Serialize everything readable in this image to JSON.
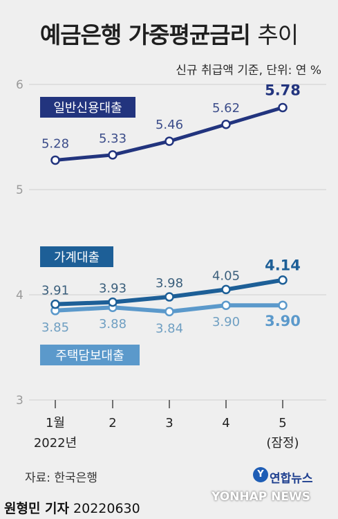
{
  "header": {
    "title_main": "예금은행 가중평균금리",
    "title_suffix": "추이",
    "subtitle": "신규 취급액 기준, 단위: 연 %"
  },
  "footer": {
    "source": "자료: 한국은행",
    "reporter": "원형민 기자",
    "date": "20220630",
    "logo": "연합뉴스",
    "watermark": "YONHAP NEWS"
  },
  "colors": {
    "series_dark": "#22347e",
    "series_mid": "#1d5f97",
    "series_light": "#5b99cb",
    "grid": "#cfcfcf",
    "axis": "#444444"
  },
  "chart_data": {
    "type": "line",
    "title": "예금은행 가중평균금리 추이",
    "xlabel": "",
    "ylabel": "",
    "unit": "연 %",
    "x_labels": [
      {
        "top": "1월",
        "bottom": "2022년"
      },
      {
        "top": "2",
        "bottom": ""
      },
      {
        "top": "3",
        "bottom": ""
      },
      {
        "top": "4",
        "bottom": ""
      },
      {
        "top": "5",
        "bottom": "(잠정)"
      }
    ],
    "y_ticks": [
      "3",
      "4",
      "5",
      "6"
    ],
    "ylim": [
      3,
      6
    ],
    "grid": true,
    "series": [
      {
        "name": "일반신용대출",
        "color": "#22347e",
        "values": [
          5.28,
          5.33,
          5.46,
          5.62,
          5.78
        ],
        "labels": [
          "5.28",
          "5.33",
          "5.46",
          "5.62",
          "5.78"
        ]
      },
      {
        "name": "가계대출",
        "color": "#1d5f97",
        "values": [
          3.91,
          3.93,
          3.98,
          4.05,
          4.14
        ],
        "labels": [
          "3.91",
          "3.93",
          "3.98",
          "4.05",
          "4.14"
        ]
      },
      {
        "name": "주택담보대출",
        "color": "#5b99cb",
        "values": [
          3.85,
          3.88,
          3.84,
          3.9,
          3.9
        ],
        "labels": [
          "3.85",
          "3.88",
          "3.84",
          "3.90",
          "3.90"
        ]
      }
    ]
  }
}
